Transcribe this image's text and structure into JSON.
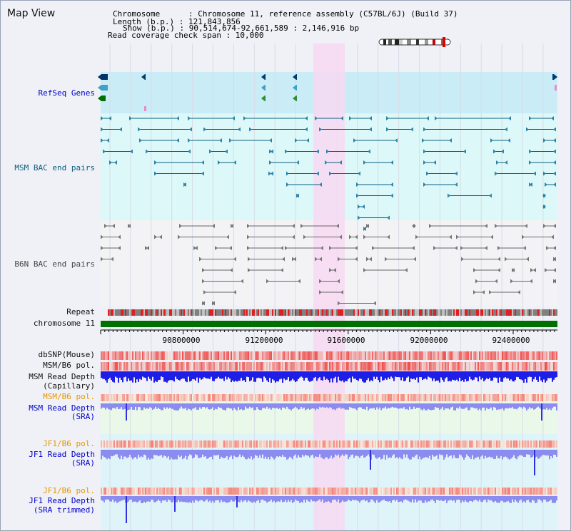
{
  "view_title": "Map View",
  "info": {
    "chromosome": "Chromosome      : Chromosome 11, reference assembly (C57BL/6J) (Build 37)",
    "length": "Length (b.p.) : 121,843,856",
    "show": "Show (b.p.) : 90,514,674-92,661,589 : 2,146,916 bp",
    "coverage": "Read coverage check span : 10,000"
  },
  "tracks": {
    "refseq": "RefSeq Genes",
    "msm_bac": "MSM BAC end pairs",
    "b6n_bac": "B6N BAC end pairs",
    "repeat": "Repeat",
    "chromosome": "chromosome 11",
    "dbsnp": "dbSNP(Mouse)",
    "msm_b6_pol_1": "MSM/B6 pol.",
    "msm_read_depth_cap_1": "MSM Read Depth",
    "msm_read_depth_cap_2": "(Capillary)",
    "msm_b6_pol_2": "MSM/B6 pol.",
    "msm_read_depth_sra_1": "MSM Read Depth",
    "msm_read_depth_sra_2": "(SRA)",
    "jf1_b6_pol_1": "JF1/B6 pol.",
    "jf1_read_depth_1": "JF1 Read Depth",
    "jf1_read_depth_2": "(SRA)",
    "jf1_b6_pol_2": "JF1/B6 pol.",
    "jf1_read_depth_trim_1": "JF1 Read Depth",
    "jf1_read_depth_trim_2": "(SRA trimmed)"
  },
  "ticks": [
    "90800000",
    "91200000",
    "91600000",
    "92000000",
    "92400000"
  ],
  "colors": {
    "refseq_bg": "#c9ecf7",
    "msm_bg": "#dcf8f8",
    "b6n_bg": "#f3f3f5",
    "highlight": "#f7d9f2",
    "chromosome_bar": "#007000",
    "depth_dark": "#1e1ee6",
    "depth_light": "#8c8cf0",
    "snp_red": "#f03030"
  }
}
